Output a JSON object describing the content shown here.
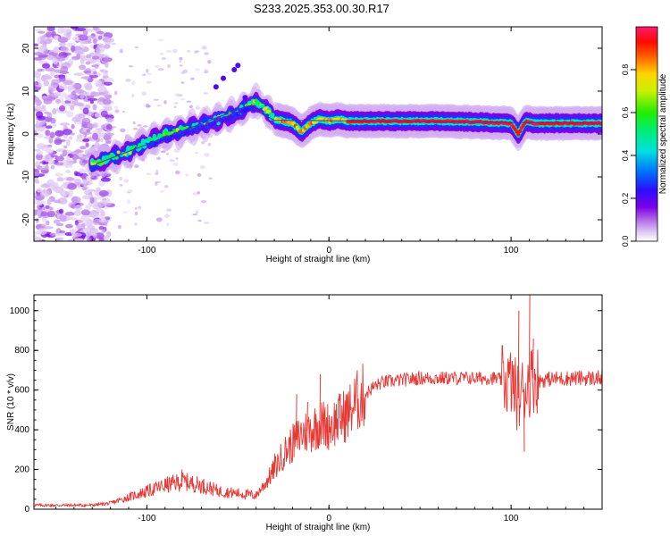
{
  "title": "S233.2025.353.00.30.R17",
  "colors": {
    "axis": "#000000",
    "snr_line": "#e53935",
    "fit_line": "#1f3fbf"
  },
  "chart_data": [
    {
      "type": "heatmap",
      "name": "spectrogram",
      "xlabel": "Height of straight line (km)",
      "ylabel": "Frequency (Hz)",
      "xlim": [
        -162,
        150
      ],
      "ylim": [
        -25,
        25
      ],
      "x_ticks": [
        -100,
        0,
        100
      ],
      "y_ticks": [
        -20,
        -10,
        0,
        10,
        20
      ],
      "colormap": "rainbow (magenta-purple-blue-cyan-green-yellow-red-pink)",
      "colorbar": {
        "label": "Normalized spectral amplitude",
        "range": [
          0,
          1
        ],
        "ticks": [
          0.0,
          0.2,
          0.4,
          0.6,
          0.8
        ]
      },
      "ridge": {
        "x": [
          -128,
          -120,
          -110,
          -100,
          -90,
          -80,
          -70,
          -60,
          -50,
          -45,
          -40,
          -35,
          -30,
          -25,
          -20,
          -15,
          -10,
          -5,
          0,
          5,
          10,
          20,
          40,
          60,
          80,
          90,
          100,
          104,
          108,
          112,
          120,
          140,
          150
        ],
        "y": [
          -7,
          -5.5,
          -4,
          -2,
          0,
          1,
          2,
          3.5,
          5,
          6.5,
          7.5,
          6,
          3.5,
          3,
          2.5,
          0.5,
          2.5,
          3.5,
          3,
          3.5,
          3,
          3,
          3,
          3,
          2.8,
          2.6,
          2.5,
          0,
          3,
          2.5,
          2.5,
          2.5,
          2.5
        ]
      },
      "fit_line": {
        "x": [
          -128,
          -45,
          -30,
          150
        ],
        "y": [
          -7,
          6.5,
          3.2,
          2.5
        ]
      }
    },
    {
      "type": "line",
      "name": "snr",
      "xlabel": "Height of straight line (km)",
      "ylabel": "SNR (10 * v/v)",
      "xlim": [
        -162,
        150
      ],
      "ylim": [
        0,
        1080
      ],
      "x_ticks": [
        -100,
        0,
        100
      ],
      "y_ticks": [
        0,
        200,
        400,
        600,
        800,
        1000
      ],
      "envelope": {
        "x": [
          -162,
          -130,
          -120,
          -110,
          -100,
          -90,
          -80,
          -70,
          -60,
          -50,
          -40,
          -35,
          -30,
          -25,
          -20,
          -15,
          -10,
          -5,
          0,
          5,
          10,
          15,
          20,
          25,
          30,
          40,
          50,
          60,
          70,
          80,
          90,
          95,
          100,
          104,
          108,
          112,
          116,
          120,
          130,
          140,
          150
        ],
        "y": [
          20,
          20,
          30,
          60,
          90,
          120,
          140,
          120,
          90,
          80,
          70,
          130,
          200,
          280,
          330,
          380,
          400,
          430,
          420,
          450,
          480,
          540,
          580,
          620,
          640,
          650,
          660,
          660,
          660,
          660,
          660,
          650,
          640,
          560,
          620,
          660,
          650,
          655,
          660,
          660,
          660
        ]
      },
      "spikes": {
        "x": [
          -81,
          -30,
          -18,
          -12,
          -5,
          6,
          104,
          107,
          110,
          112
        ],
        "y": [
          200,
          280,
          580,
          540,
          680,
          580,
          1000,
          290,
          1080,
          860
        ]
      }
    }
  ]
}
